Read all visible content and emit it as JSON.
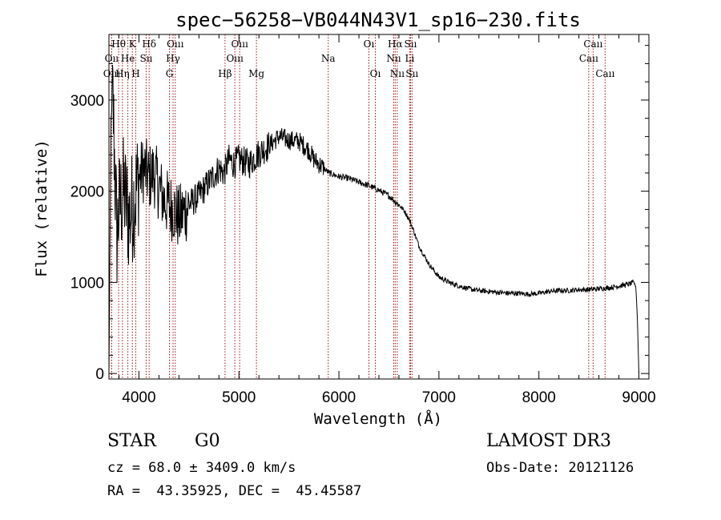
{
  "chart_data": {
    "type": "line",
    "title": "spec−56258−VB044N43V1_sp16−230.fits",
    "xlabel": "Wavelength (Å)",
    "ylabel": "Flux (relative)",
    "xlim": [
      3700,
      9100
    ],
    "ylim": [
      -60,
      3720
    ],
    "xticks": [
      4000,
      5000,
      6000,
      7000,
      8000,
      9000
    ],
    "yticks": [
      0,
      1000,
      2000,
      3000
    ],
    "series": [
      {
        "name": "spectrum",
        "anchors_x": [
          3700,
          3710,
          3720,
          3740,
          3760,
          3780,
          3800,
          3850,
          3900,
          3950,
          4000,
          4050,
          4100,
          4150,
          4200,
          4250,
          4300,
          4350,
          4400,
          4500,
          4600,
          4700,
          4800,
          4850,
          4900,
          4950,
          5000,
          5100,
          5200,
          5300,
          5400,
          5500,
          5600,
          5700,
          5750,
          5800,
          5850,
          5900,
          6000,
          6100,
          6200,
          6300,
          6400,
          6500,
          6550,
          6600,
          6650,
          6700,
          6750,
          6800,
          6900,
          7000,
          7100,
          7200,
          7300,
          7400,
          7500,
          7600,
          7700,
          7800,
          7900,
          8000,
          8100,
          8200,
          8300,
          8400,
          8500,
          8600,
          8700,
          8800,
          8900,
          8950,
          8970,
          8985,
          9000
        ],
        "anchors_y": [
          0,
          1400,
          2800,
          3000,
          2200,
          1500,
          1800,
          2000,
          1700,
          1900,
          2150,
          2250,
          2150,
          2200,
          2050,
          1900,
          1850,
          1800,
          1700,
          1850,
          1950,
          2100,
          2250,
          2200,
          2350,
          2300,
          2350,
          2300,
          2420,
          2500,
          2600,
          2560,
          2550,
          2450,
          2350,
          2300,
          2250,
          2200,
          2160,
          2140,
          2100,
          2060,
          2010,
          1950,
          1900,
          1850,
          1790,
          1700,
          1560,
          1400,
          1200,
          1060,
          1000,
          960,
          930,
          910,
          900,
          890,
          880,
          880,
          870,
          880,
          900,
          910,
          910,
          920,
          920,
          930,
          940,
          960,
          980,
          1000,
          950,
          600,
          0
        ],
        "noise_amplitude_note": "Strong jitter blueward of ~4500 Å (±400), moderate to ~5800 Å (±120), small redward (±25)"
      }
    ],
    "spectral_lines": [
      {
        "label": "Oıı",
        "x": 3727,
        "row": 2
      },
      {
        "label": "Oııı",
        "x": 3727,
        "row": 3
      },
      {
        "label": "Hθ",
        "x": 3797,
        "row": 1
      },
      {
        "label": "Hη",
        "x": 3835,
        "row": 3
      },
      {
        "label": "He",
        "x": 3889,
        "row": 2
      },
      {
        "label": "K",
        "x": 3934,
        "row": 1
      },
      {
        "label": "H",
        "x": 3968,
        "row": 3
      },
      {
        "label": "Sıı",
        "x": 4072,
        "row": 2
      },
      {
        "label": "Hδ",
        "x": 4102,
        "row": 1
      },
      {
        "label": "Oııı",
        "x": 4363,
        "row": 1
      },
      {
        "label": "Hγ",
        "x": 4341,
        "row": 2
      },
      {
        "label": "G",
        "x": 4305,
        "row": 3
      },
      {
        "label": "Hβ",
        "x": 4861,
        "row": 3
      },
      {
        "label": "Oııı",
        "x": 5007,
        "row": 1
      },
      {
        "label": "Oııı",
        "x": 4959,
        "row": 2
      },
      {
        "label": "Mg",
        "x": 5175,
        "row": 3
      },
      {
        "label": "Na",
        "x": 5893,
        "row": 2
      },
      {
        "label": "Oı",
        "x": 6300,
        "row": 1
      },
      {
        "label": "Oı",
        "x": 6364,
        "row": 3
      },
      {
        "label": "Hα",
        "x": 6563,
        "row": 1
      },
      {
        "label": "Nıı",
        "x": 6548,
        "row": 2
      },
      {
        "label": "Nıı",
        "x": 6583,
        "row": 3
      },
      {
        "label": "Sıı",
        "x": 6716,
        "row": 1
      },
      {
        "label": "Li",
        "x": 6708,
        "row": 2
      },
      {
        "label": "Sıı",
        "x": 6731,
        "row": 3
      },
      {
        "label": "Caıı",
        "x": 8542,
        "row": 1
      },
      {
        "label": "Caıı",
        "x": 8498,
        "row": 2
      },
      {
        "label": "Caıı",
        "x": 8662,
        "row": 3
      }
    ],
    "line_color": "#a01010",
    "grid": false
  },
  "info": {
    "object_type": "STAR",
    "subclass": "G0",
    "survey": "LAMOST DR3",
    "redshift": "cz = 68.0 ± 3409.0 km/s",
    "obs_date": "Obs-Date: 20121126",
    "coords": "RA =  43.35925, DEC =  45.45587"
  }
}
